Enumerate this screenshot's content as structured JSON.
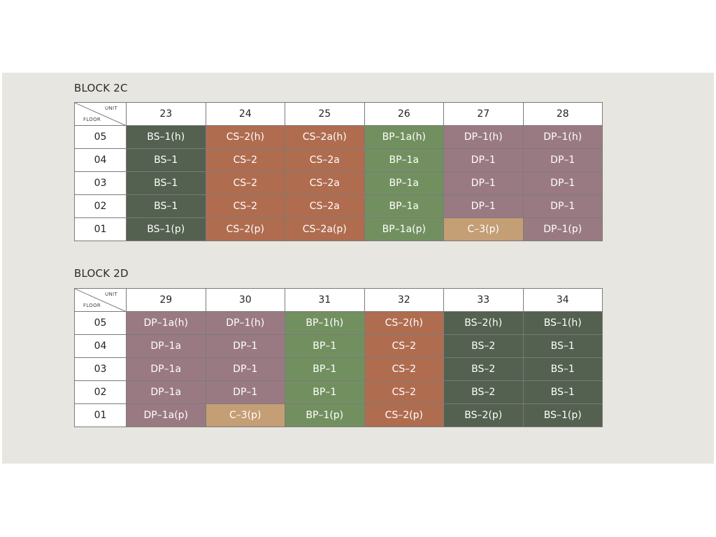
{
  "blocks": [
    {
      "title": "BLOCK 2C",
      "corner": {
        "unit_label": "UNIT",
        "floor_label": "FLOOR"
      },
      "units": [
        "23",
        "24",
        "25",
        "26",
        "27",
        "28"
      ],
      "rows": [
        {
          "floor": "05",
          "cells": [
            {
              "text": "BS–1(h)",
              "type": "BS"
            },
            {
              "text": "CS–2(h)",
              "type": "CS"
            },
            {
              "text": "CS–2a(h)",
              "type": "CS"
            },
            {
              "text": "BP–1a(h)",
              "type": "BP"
            },
            {
              "text": "DP–1(h)",
              "type": "DP"
            },
            {
              "text": "DP–1(h)",
              "type": "DP"
            }
          ]
        },
        {
          "floor": "04",
          "cells": [
            {
              "text": "BS–1",
              "type": "BS"
            },
            {
              "text": "CS–2",
              "type": "CS"
            },
            {
              "text": "CS–2a",
              "type": "CS"
            },
            {
              "text": "BP–1a",
              "type": "BP"
            },
            {
              "text": "DP–1",
              "type": "DP"
            },
            {
              "text": "DP–1",
              "type": "DP"
            }
          ]
        },
        {
          "floor": "03",
          "cells": [
            {
              "text": "BS–1",
              "type": "BS"
            },
            {
              "text": "CS–2",
              "type": "CS"
            },
            {
              "text": "CS–2a",
              "type": "CS"
            },
            {
              "text": "BP–1a",
              "type": "BP"
            },
            {
              "text": "DP–1",
              "type": "DP"
            },
            {
              "text": "DP–1",
              "type": "DP"
            }
          ]
        },
        {
          "floor": "02",
          "cells": [
            {
              "text": "BS–1",
              "type": "BS"
            },
            {
              "text": "CS–2",
              "type": "CS"
            },
            {
              "text": "CS–2a",
              "type": "CS"
            },
            {
              "text": "BP–1a",
              "type": "BP"
            },
            {
              "text": "DP–1",
              "type": "DP"
            },
            {
              "text": "DP–1",
              "type": "DP"
            }
          ]
        },
        {
          "floor": "01",
          "cells": [
            {
              "text": "BS–1(p)",
              "type": "BS"
            },
            {
              "text": "CS–2(p)",
              "type": "CS"
            },
            {
              "text": "CS–2a(p)",
              "type": "CS"
            },
            {
              "text": "BP–1a(p)",
              "type": "BP"
            },
            {
              "text": "C–3(p)",
              "type": "C"
            },
            {
              "text": "DP–1(p)",
              "type": "DP"
            }
          ]
        }
      ]
    },
    {
      "title": "BLOCK 2D",
      "corner": {
        "unit_label": "UNIT",
        "floor_label": "FLOOR"
      },
      "units": [
        "29",
        "30",
        "31",
        "32",
        "33",
        "34"
      ],
      "rows": [
        {
          "floor": "05",
          "cells": [
            {
              "text": "DP–1a(h)",
              "type": "DP"
            },
            {
              "text": "DP–1(h)",
              "type": "DP"
            },
            {
              "text": "BP–1(h)",
              "type": "BP"
            },
            {
              "text": "CS–2(h)",
              "type": "CS"
            },
            {
              "text": "BS–2(h)",
              "type": "BS"
            },
            {
              "text": "BS–1(h)",
              "type": "BS"
            }
          ]
        },
        {
          "floor": "04",
          "cells": [
            {
              "text": "DP–1a",
              "type": "DP"
            },
            {
              "text": "DP–1",
              "type": "DP"
            },
            {
              "text": "BP–1",
              "type": "BP"
            },
            {
              "text": "CS–2",
              "type": "CS"
            },
            {
              "text": "BS–2",
              "type": "BS"
            },
            {
              "text": "BS–1",
              "type": "BS"
            }
          ]
        },
        {
          "floor": "03",
          "cells": [
            {
              "text": "DP–1a",
              "type": "DP"
            },
            {
              "text": "DP–1",
              "type": "DP"
            },
            {
              "text": "BP–1",
              "type": "BP"
            },
            {
              "text": "CS–2",
              "type": "CS"
            },
            {
              "text": "BS–2",
              "type": "BS"
            },
            {
              "text": "BS–1",
              "type": "BS"
            }
          ]
        },
        {
          "floor": "02",
          "cells": [
            {
              "text": "DP–1a",
              "type": "DP"
            },
            {
              "text": "DP–1",
              "type": "DP"
            },
            {
              "text": "BP–1",
              "type": "BP"
            },
            {
              "text": "CS–2",
              "type": "CS"
            },
            {
              "text": "BS–2",
              "type": "BS"
            },
            {
              "text": "BS–1",
              "type": "BS"
            }
          ]
        },
        {
          "floor": "01",
          "cells": [
            {
              "text": "DP–1a(p)",
              "type": "DP"
            },
            {
              "text": "C–3(p)",
              "type": "C"
            },
            {
              "text": "BP–1(p)",
              "type": "BP"
            },
            {
              "text": "CS–2(p)",
              "type": "CS"
            },
            {
              "text": "BS–2(p)",
              "type": "BS"
            },
            {
              "text": "BS–1(p)",
              "type": "BS"
            }
          ]
        }
      ]
    }
  ],
  "colors": {
    "BS": "#546050",
    "CS": "#b06c4f",
    "BP": "#72905f",
    "DP": "#9a7a82",
    "C": "#c49e74",
    "background": "#e7e6e1"
  }
}
